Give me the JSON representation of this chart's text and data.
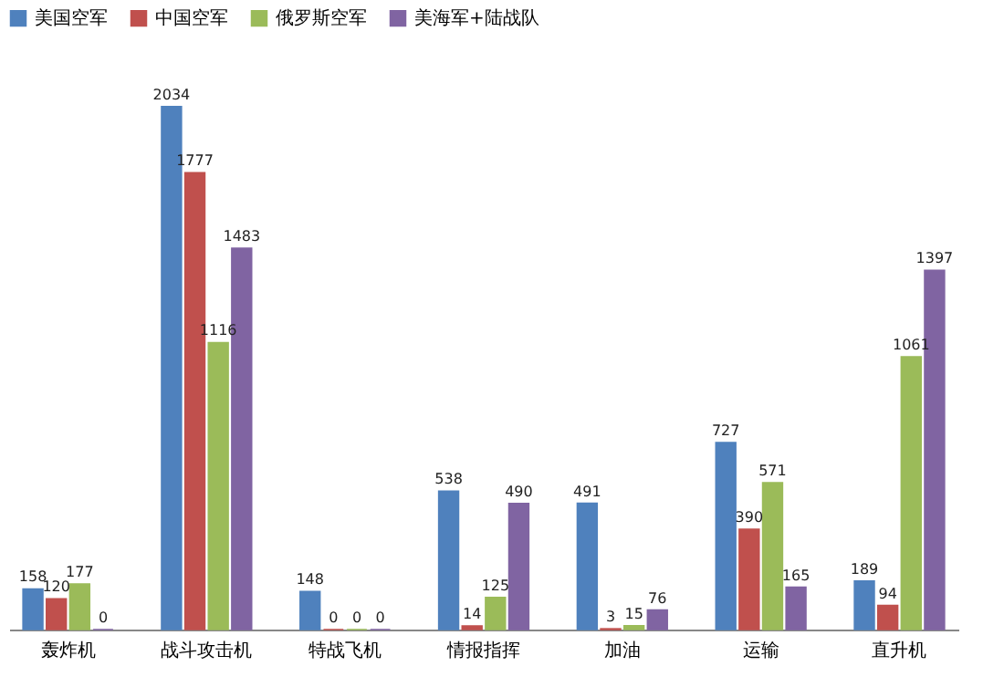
{
  "chart_data": {
    "type": "bar",
    "categories": [
      "轰炸机",
      "战斗攻击机",
      "特战飞机",
      "情报指挥",
      "加油",
      "运输",
      "直升机"
    ],
    "series": [
      {
        "name": "美国空军",
        "color": "#4f81bd",
        "values": [
          158,
          2034,
          148,
          538,
          491,
          727,
          189
        ]
      },
      {
        "name": "中国空军",
        "color": "#c0504d",
        "values": [
          120,
          1777,
          0,
          14,
          3,
          390,
          94
        ]
      },
      {
        "name": "俄罗斯空军",
        "color": "#9bbb59",
        "values": [
          177,
          1116,
          0,
          125,
          15,
          571,
          1061
        ]
      },
      {
        "name": "美海军+陆战队",
        "color": "#8064a2",
        "values": [
          0,
          1483,
          0,
          490,
          76,
          165,
          1397
        ]
      }
    ],
    "data_labels": true,
    "legend": "top",
    "grid": false
  }
}
